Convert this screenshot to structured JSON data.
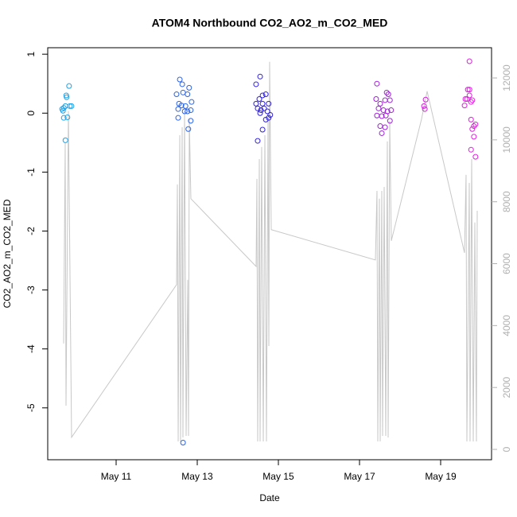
{
  "chart_data": {
    "type": "scatter",
    "title": "ATOM4 Northbound CO2_AO2_m_CO2_MED",
    "x_label": "Date",
    "y_label": "CO2_AO2_m_CO2_MED",
    "xlim": [
      9.314,
      20.255
    ],
    "xticks": [
      {
        "value": 11,
        "label": "May 11"
      },
      {
        "value": 13,
        "label": "May 13"
      },
      {
        "value": 15,
        "label": "May 15"
      },
      {
        "value": 17,
        "label": "May 17"
      },
      {
        "value": 19,
        "label": "May 19"
      }
    ],
    "ylim": [
      -5.88,
      1.11
    ],
    "yticks": [
      -5,
      -4,
      -3,
      -2,
      -1,
      0,
      1
    ],
    "y2lim": [
      -334,
      12977
    ],
    "y2ticks": [
      0,
      2000,
      4000,
      6000,
      8000,
      10000,
      12000
    ],
    "series": [
      {
        "color": "#1ea0e6",
        "x": [
          9.67,
          9.71,
          9.75,
          9.77,
          9.78,
          9.84,
          9.86,
          9.9,
          9.71,
          9.8,
          9.75,
          9.69
        ],
        "values": [
          0.07,
          0.09,
          0.12,
          0.3,
          0.27,
          0.46,
          0.12,
          0.12,
          -0.08,
          -0.07,
          -0.46,
          0.04
        ]
      },
      {
        "color": "#2a64e6",
        "x": [
          12.57,
          12.63,
          12.49,
          12.65,
          12.76,
          12.8,
          12.55,
          12.61,
          12.71,
          12.53,
          12.69,
          12.76,
          12.84,
          12.86,
          12.53,
          12.84,
          12.78,
          12.65
        ],
        "values": [
          0.57,
          0.49,
          0.32,
          0.35,
          0.32,
          0.43,
          0.16,
          0.13,
          0.12,
          0.07,
          0.03,
          0.03,
          0.05,
          0.19,
          -0.08,
          -0.13,
          -0.27,
          -5.59
        ]
      },
      {
        "color": "#3020e0",
        "x": [
          14.55,
          14.45,
          14.61,
          14.69,
          14.53,
          14.45,
          14.61,
          14.76,
          14.49,
          14.57,
          14.65,
          14.73,
          14.8,
          14.69,
          14.61,
          14.49,
          14.55,
          14.76
        ],
        "values": [
          0.62,
          0.49,
          0.3,
          0.32,
          0.24,
          0.16,
          0.16,
          0.16,
          0.08,
          0.05,
          0.08,
          0.03,
          -0.03,
          -0.11,
          -0.28,
          -0.47,
          0.0,
          -0.08
        ]
      },
      {
        "color": "#a020d8",
        "x": [
          17.43,
          17.41,
          17.67,
          17.71,
          17.51,
          17.63,
          17.75,
          17.47,
          17.59,
          17.69,
          17.78,
          17.43,
          17.55,
          17.65,
          17.51,
          17.63,
          17.55,
          17.75
        ],
        "values": [
          0.5,
          0.24,
          0.35,
          0.32,
          0.16,
          0.22,
          0.22,
          0.08,
          0.05,
          0.03,
          0.05,
          -0.04,
          -0.05,
          -0.04,
          -0.22,
          -0.24,
          -0.34,
          -0.13
        ]
      },
      {
        "color": "#d020d8",
        "x": [
          18.59,
          18.61,
          18.63
        ],
        "values": [
          0.12,
          0.07,
          0.23
        ]
      },
      {
        "color": "#e020e0",
        "x": [
          19.71,
          19.71,
          19.67,
          19.61,
          19.65,
          19.71,
          19.78,
          19.75,
          19.59,
          19.75,
          19.82,
          19.86,
          19.78,
          19.82,
          19.75,
          19.86
        ],
        "values": [
          0.88,
          0.4,
          0.4,
          0.24,
          0.24,
          0.3,
          0.22,
          0.19,
          0.13,
          -0.11,
          -0.22,
          -0.19,
          -0.27,
          -0.4,
          -0.62,
          -0.74
        ]
      },
      {
        "type": "line",
        "axis": "y2",
        "color": "#c8c8c8",
        "x": [
          9.706,
          9.745,
          9.765,
          9.824,
          9.902,
          12.49,
          12.51,
          12.53,
          12.569,
          12.588,
          12.628,
          12.647,
          12.687,
          12.726,
          12.765,
          12.785,
          12.804,
          12.843,
          14.451,
          14.471,
          14.49,
          14.53,
          14.549,
          14.588,
          14.628,
          14.667,
          14.706,
          14.745,
          14.765,
          14.784,
          14.824,
          17.392,
          17.431,
          17.451,
          17.49,
          17.51,
          17.549,
          17.569,
          17.608,
          17.647,
          17.686,
          17.706,
          17.745,
          17.784,
          18.529,
          18.667,
          19.588,
          19.627,
          19.647,
          19.706,
          19.725,
          19.765,
          19.804,
          19.843,
          19.882,
          19.902
        ],
        "values": [
          3420,
          9900,
          1410,
          10930,
          390,
          5320,
          8560,
          257,
          10150,
          257,
          10410,
          386,
          10930,
          437,
          5480,
          437,
          10670,
          8100,
          5910,
          8740,
          257,
          9380,
          257,
          9770,
          257,
          10150,
          257,
          10670,
          3340,
          12520,
          7100,
          6120,
          8350,
          257,
          8100,
          257,
          8350,
          437,
          8480,
          437,
          9950,
          386,
          10620,
          6740,
          10670,
          11570,
          6350,
          8870,
          257,
          8610,
          257,
          9380,
          257,
          7330,
          257,
          7710
        ]
      }
    ]
  }
}
